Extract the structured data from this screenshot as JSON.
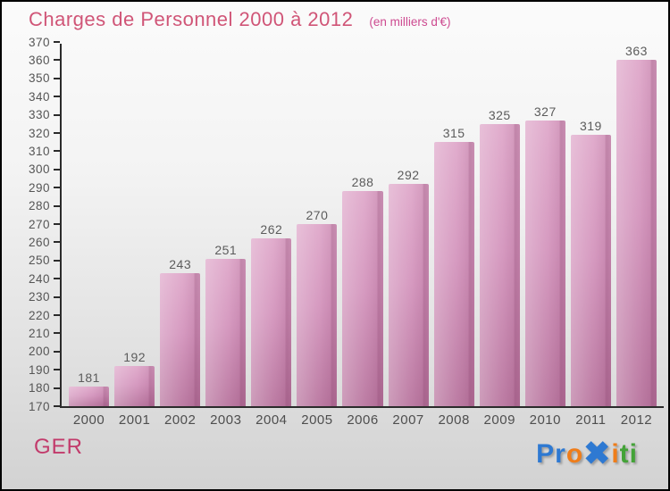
{
  "header": {
    "title": "Charges de Personnel 2000 à 2012",
    "subtitle": "(en milliers d'€)"
  },
  "footer": {
    "left_label": "GER",
    "logo": {
      "name": "Proxiti",
      "letters": [
        {
          "ch": "P",
          "color": "#2e79d2",
          "big": false
        },
        {
          "ch": "r",
          "color": "#2e79d2",
          "big": false
        },
        {
          "ch": "o",
          "color": "#ef7d1a",
          "big": false
        },
        {
          "ch": "✖",
          "color": "#2e79d2",
          "big": true
        },
        {
          "ch": "i",
          "color": "#ef7d1a",
          "big": false
        },
        {
          "ch": "t",
          "color": "#44a338",
          "big": false
        },
        {
          "ch": "i",
          "color": "#44a338",
          "big": false
        }
      ]
    }
  },
  "chart_data": {
    "type": "bar",
    "title": "Charges de Personnel 2000 à 2012",
    "subtitle": "(en milliers d'€)",
    "categories": [
      "2000",
      "2001",
      "2002",
      "2003",
      "2004",
      "2005",
      "2006",
      "2007",
      "2008",
      "2009",
      "2010",
      "2011",
      "2012"
    ],
    "values": [
      181,
      192,
      243,
      251,
      262,
      270,
      288,
      292,
      315,
      325,
      327,
      319,
      363
    ],
    "xlabel": "",
    "ylabel": "",
    "ylim": [
      170,
      370
    ],
    "ytick_step": 10,
    "grid": false,
    "legend": null,
    "bar_color_top": "#dfa8ca",
    "bar_color_bottom": "#b9769f",
    "axis_color": "#2b2b2b",
    "title_color": "#d05577",
    "subtitle_color": "#cd4a90"
  }
}
